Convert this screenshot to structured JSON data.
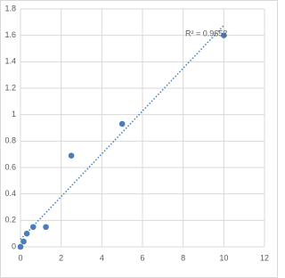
{
  "chart_data": {
    "type": "scatter",
    "x": [
      0,
      0.156,
      0.312,
      0.625,
      1.25,
      2.5,
      5,
      10
    ],
    "series": [
      {
        "color": "#4a7ebb",
        "values": [
          0,
          0.04,
          0.1,
          0.15,
          0.15,
          0.69,
          0.93,
          1.6
        ]
      }
    ],
    "xlim": [
      0,
      12
    ],
    "xticks": [
      0,
      2,
      4,
      6,
      8,
      10,
      12
    ],
    "ylim": [
      0,
      1.8
    ],
    "yticks": [
      0,
      0.2,
      0.4,
      0.6,
      0.8,
      1,
      1.2,
      1.4,
      1.6,
      1.8
    ],
    "grid": true,
    "trendline": "linear",
    "annotation": "R² = 0.9652"
  }
}
